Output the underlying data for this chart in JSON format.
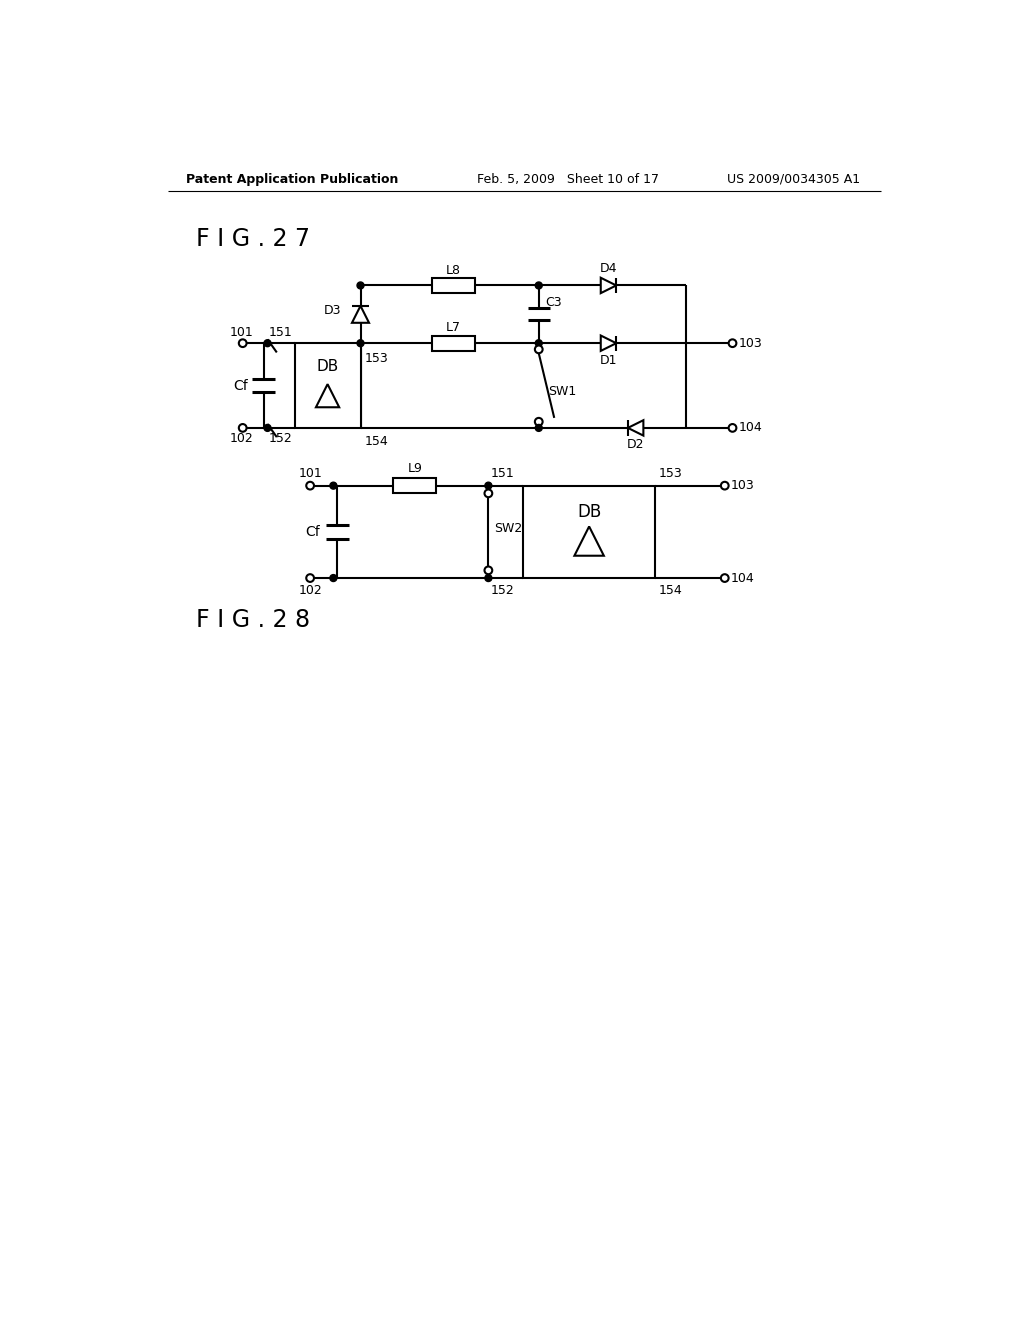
{
  "bg_color": "#ffffff",
  "header_left": "Patent Application Publication",
  "header_mid": "Feb. 5, 2009   Sheet 10 of 17",
  "header_right": "US 2009/0034305 A1",
  "fig27_label": "F I G . 2 7",
  "fig28_label": "F I G . 2 8"
}
